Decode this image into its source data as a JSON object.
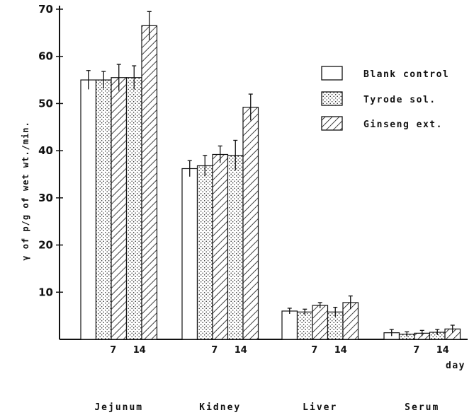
{
  "chart_data": {
    "type": "bar",
    "ylabel": "γ of p/g of wet wt./min.",
    "ylim": [
      0,
      70
    ],
    "yticks": [
      10,
      20,
      30,
      40,
      50,
      60,
      70
    ],
    "x_unit_label": "day",
    "legend_position": "top-right",
    "legend": [
      {
        "key": "blank",
        "label": "Blank control",
        "pattern": "plain"
      },
      {
        "key": "tyrode",
        "label": "Tyrode sol.",
        "pattern": "dots"
      },
      {
        "key": "ginseng",
        "label": "Ginseng ext.",
        "pattern": "hatch"
      }
    ],
    "groups": [
      {
        "name": "Jejunum",
        "day_labels": [
          "7",
          "14"
        ],
        "bars": [
          {
            "series": "blank",
            "value": 55.0,
            "error": 2.0
          },
          {
            "series": "tyrode",
            "value": 55.0,
            "error": 1.8
          },
          {
            "series": "ginseng",
            "value": 55.5,
            "error": 2.8
          },
          {
            "series": "tyrode",
            "value": 55.5,
            "error": 2.5
          },
          {
            "series": "ginseng",
            "value": 66.5,
            "error": 3.0
          }
        ]
      },
      {
        "name": "Kidney",
        "day_labels": [
          "7",
          "14"
        ],
        "bars": [
          {
            "series": "blank",
            "value": 36.2,
            "error": 1.7
          },
          {
            "series": "tyrode",
            "value": 36.8,
            "error": 2.2
          },
          {
            "series": "ginseng",
            "value": 39.2,
            "error": 1.8
          },
          {
            "series": "tyrode",
            "value": 39.0,
            "error": 3.2
          },
          {
            "series": "ginseng",
            "value": 49.2,
            "error": 2.8
          }
        ]
      },
      {
        "name": "Liver",
        "day_labels": [
          "7",
          "14"
        ],
        "bars": [
          {
            "series": "blank",
            "value": 6.0,
            "error": 0.6
          },
          {
            "series": "tyrode",
            "value": 5.8,
            "error": 0.6
          },
          {
            "series": "ginseng",
            "value": 7.2,
            "error": 0.6
          },
          {
            "series": "tyrode",
            "value": 5.8,
            "error": 1.0
          },
          {
            "series": "ginseng",
            "value": 7.8,
            "error": 1.4
          }
        ]
      },
      {
        "name": "Serum",
        "day_labels": [
          "7",
          "14"
        ],
        "bars": [
          {
            "series": "blank",
            "value": 1.4,
            "error": 0.7
          },
          {
            "series": "tyrode",
            "value": 1.1,
            "error": 0.5
          },
          {
            "series": "ginseng",
            "value": 1.3,
            "error": 0.6
          },
          {
            "series": "tyrode",
            "value": 1.5,
            "error": 0.6
          },
          {
            "series": "ginseng",
            "value": 2.2,
            "error": 0.8
          }
        ]
      }
    ]
  }
}
